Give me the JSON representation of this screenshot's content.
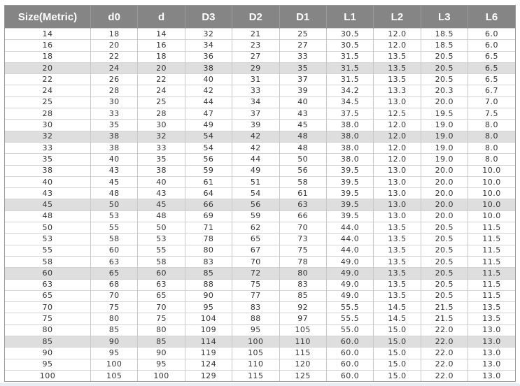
{
  "table": {
    "headers": [
      "Size(Metric)",
      "d0",
      "d",
      "D3",
      "D2",
      "D1",
      "L1",
      "L2",
      "L3",
      "L6"
    ],
    "shaded_row_indices": [
      3,
      9,
      15,
      21,
      27
    ],
    "shade_color": "#dedede",
    "header_color": "#858585",
    "rows": [
      [
        "14",
        "18",
        "14",
        "32",
        "21",
        "25",
        "30.5",
        "12.0",
        "18.5",
        "6.0"
      ],
      [
        "16",
        "20",
        "16",
        "34",
        "23",
        "27",
        "30.5",
        "12.0",
        "18.5",
        "6.0"
      ],
      [
        "18",
        "22",
        "18",
        "36",
        "27",
        "33",
        "31.5",
        "13.5",
        "20.5",
        "6.5"
      ],
      [
        "20",
        "24",
        "20",
        "38",
        "29",
        "35",
        "31.5",
        "13.5",
        "20.5",
        "6.5"
      ],
      [
        "22",
        "26",
        "22",
        "40",
        "31",
        "37",
        "31.5",
        "13.5",
        "20.5",
        "6.5"
      ],
      [
        "24",
        "28",
        "24",
        "42",
        "33",
        "39",
        "34.2",
        "13.3",
        "20.3",
        "6.7"
      ],
      [
        "25",
        "30",
        "25",
        "44",
        "34",
        "40",
        "34.5",
        "13.0",
        "20.0",
        "7.0"
      ],
      [
        "28",
        "33",
        "28",
        "47",
        "37",
        "43",
        "37.5",
        "12.5",
        "19.5",
        "7.5"
      ],
      [
        "30",
        "35",
        "30",
        "49",
        "39",
        "45",
        "38.0",
        "12.0",
        "19.0",
        "8.0"
      ],
      [
        "32",
        "38",
        "32",
        "54",
        "42",
        "48",
        "38.0",
        "12.0",
        "19.0",
        "8.0"
      ],
      [
        "33",
        "38",
        "33",
        "54",
        "42",
        "48",
        "38.0",
        "12.0",
        "19.0",
        "8.0"
      ],
      [
        "35",
        "40",
        "35",
        "56",
        "44",
        "50",
        "38.0",
        "12.0",
        "19.0",
        "8.0"
      ],
      [
        "38",
        "43",
        "38",
        "59",
        "49",
        "56",
        "39.5",
        "13.0",
        "20.0",
        "10.0"
      ],
      [
        "40",
        "45",
        "40",
        "61",
        "51",
        "58",
        "39.5",
        "13.0",
        "20.0",
        "10.0"
      ],
      [
        "43",
        "48",
        "43",
        "64",
        "54",
        "61",
        "39.5",
        "13.0",
        "20.0",
        "10.0"
      ],
      [
        "45",
        "50",
        "45",
        "66",
        "56",
        "63",
        "39.5",
        "13.0",
        "20.0",
        "10.0"
      ],
      [
        "48",
        "53",
        "48",
        "69",
        "59",
        "66",
        "39.5",
        "13.0",
        "20.0",
        "10.0"
      ],
      [
        "50",
        "55",
        "50",
        "71",
        "62",
        "70",
        "44.0",
        "13.5",
        "20.5",
        "11.5"
      ],
      [
        "53",
        "58",
        "53",
        "78",
        "65",
        "73",
        "44.0",
        "13.5",
        "20.5",
        "11.5"
      ],
      [
        "55",
        "60",
        "55",
        "80",
        "67",
        "75",
        "44.0",
        "13.5",
        "20.5",
        "11.5"
      ],
      [
        "58",
        "63",
        "58",
        "83",
        "70",
        "78",
        "49.0",
        "13.5",
        "20.5",
        "11.5"
      ],
      [
        "60",
        "65",
        "60",
        "85",
        "72",
        "80",
        "49.0",
        "13.5",
        "20.5",
        "11.5"
      ],
      [
        "63",
        "68",
        "63",
        "88",
        "75",
        "83",
        "49.0",
        "13.5",
        "20.5",
        "11.5"
      ],
      [
        "65",
        "70",
        "65",
        "90",
        "77",
        "85",
        "49.0",
        "13.5",
        "20.5",
        "11.5"
      ],
      [
        "70",
        "75",
        "70",
        "95",
        "83",
        "92",
        "55.5",
        "14.5",
        "21.5",
        "13.5"
      ],
      [
        "75",
        "80",
        "75",
        "104",
        "88",
        "97",
        "55.5",
        "14.5",
        "21.5",
        "13.5"
      ],
      [
        "80",
        "85",
        "80",
        "109",
        "95",
        "105",
        "55.0",
        "15.0",
        "22.0",
        "13.0"
      ],
      [
        "85",
        "90",
        "85",
        "114",
        "100",
        "110",
        "60.0",
        "15.0",
        "22.0",
        "13.0"
      ],
      [
        "90",
        "95",
        "90",
        "119",
        "105",
        "115",
        "60.0",
        "15.0",
        "22.0",
        "13.0"
      ],
      [
        "95",
        "100",
        "95",
        "124",
        "110",
        "120",
        "60.0",
        "15.0",
        "22.0",
        "13.0"
      ],
      [
        "100",
        "105",
        "100",
        "129",
        "115",
        "125",
        "60.0",
        "15.0",
        "22.0",
        "13.0"
      ]
    ]
  }
}
